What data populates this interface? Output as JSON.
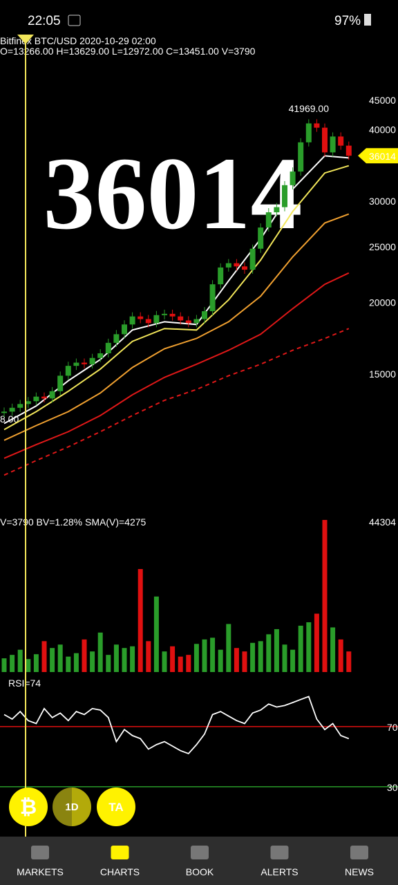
{
  "status_bar": {
    "time": "22:05",
    "battery": "97%"
  },
  "chart_data": {
    "type": "candlestick",
    "info": "Bitfinex BTC/USD 2020-10-29 02:00",
    "ohlc": "O=13266.00 H=13629.00 L=12972.00 C=13451.00 V=3790",
    "watermark": "36014",
    "log_scale": true,
    "ylim": [
      9650,
      46900
    ],
    "yticks": [
      15000,
      20000,
      25000,
      30000,
      40000,
      45000
    ],
    "ytick_colors": [
      "#e01818",
      "#e01818",
      "#e01818",
      "#e01818",
      "#2fb52f",
      "#2fb52f"
    ],
    "last": 36014,
    "high_label": {
      "value": 41969,
      "label": "41969.00"
    },
    "left_label": "8.00",
    "up_color": "#2a9d2a",
    "down_color": "#e01010",
    "close": [
      12900,
      13100,
      13300,
      13451,
      13700,
      13600,
      14000,
      14900,
      15500,
      15700,
      15600,
      16000,
      16300,
      17000,
      17600,
      18300,
      18900,
      18700,
      18400,
      19000,
      19100,
      18900,
      18600,
      18400,
      18700,
      19300,
      21500,
      23000,
      23400,
      23100,
      22800,
      24800,
      27000,
      28700,
      29300,
      32000,
      33800,
      38000,
      41000,
      40300,
      36500,
      38900,
      37500,
      36014
    ],
    "overlays": [
      {
        "color": "#ffffff",
        "dashed": false,
        "x": [
          0,
          4,
          8,
          12,
          16,
          20,
          24,
          28,
          32,
          36,
          40,
          43
        ],
        "values": [
          12300,
          13200,
          14600,
          15900,
          17900,
          18500,
          18300,
          21800,
          25800,
          31500,
          36000,
          35700
        ]
      },
      {
        "color": "#f2e65a",
        "dashed": false,
        "x": [
          0,
          4,
          8,
          12,
          16,
          20,
          24,
          28,
          32,
          36,
          40,
          43
        ],
        "values": [
          12000,
          12900,
          14000,
          15300,
          17100,
          18000,
          17900,
          20200,
          23700,
          28800,
          33600,
          34600
        ]
      },
      {
        "color": "#f0a030",
        "dashed": false,
        "x": [
          0,
          4,
          8,
          12,
          16,
          20,
          24,
          28,
          32,
          36,
          40,
          43
        ],
        "values": [
          11500,
          12200,
          12900,
          13900,
          15400,
          16600,
          17300,
          18500,
          20500,
          24000,
          27500,
          28500
        ]
      },
      {
        "color": "#e01818",
        "dashed": false,
        "x": [
          0,
          4,
          8,
          12,
          16,
          20,
          24,
          28,
          32,
          36,
          40,
          43
        ],
        "values": [
          10700,
          11300,
          11900,
          12700,
          13800,
          14800,
          15600,
          16500,
          17600,
          19500,
          21500,
          22500
        ]
      },
      {
        "color": "#e01818",
        "dashed": true,
        "x": [
          0,
          4,
          8,
          12,
          16,
          20,
          24,
          28,
          32,
          36,
          40,
          43
        ],
        "values": [
          10000,
          10600,
          11200,
          11900,
          12700,
          13500,
          14100,
          14900,
          15600,
          16500,
          17300,
          18000
        ]
      }
    ],
    "volume": {
      "info": "V=3790 BV=1.28% SMA(V)=4275",
      "ylim": [
        0,
        44304
      ],
      "yticks": [
        44304
      ],
      "values": [
        4000,
        5000,
        6500,
        3790,
        5200,
        9000,
        7000,
        8000,
        4500,
        5500,
        9500,
        6000,
        11500,
        5000,
        8000,
        7000,
        7500,
        30000,
        9000,
        22000,
        6000,
        7500,
        4500,
        5000,
        8200,
        9500,
        10000,
        6500,
        14000,
        7000,
        6000,
        8500,
        9000,
        11000,
        12500,
        8000,
        6500,
        13500,
        14500,
        17000,
        44304,
        13000,
        9500,
        6000
      ]
    },
    "rsi": {
      "label": "RSI=74",
      "ylim": [
        29,
        98
      ],
      "yticks": [
        30,
        70
      ],
      "color": "#ffffff",
      "values": [
        78,
        75,
        80,
        74,
        72,
        82,
        76,
        79,
        74,
        80,
        78,
        82,
        81,
        76,
        60,
        68,
        64,
        62,
        55,
        58,
        60,
        57,
        54,
        52,
        58,
        65,
        78,
        80,
        77,
        74,
        72,
        79,
        81,
        85,
        83,
        84,
        86,
        88,
        90,
        75,
        68,
        72,
        64,
        62
      ]
    }
  },
  "buttons": [
    "1D",
    "TA"
  ],
  "nav": [
    "MARKETS",
    "CHARTS",
    "BOOK",
    "ALERTS",
    "NEWS"
  ]
}
